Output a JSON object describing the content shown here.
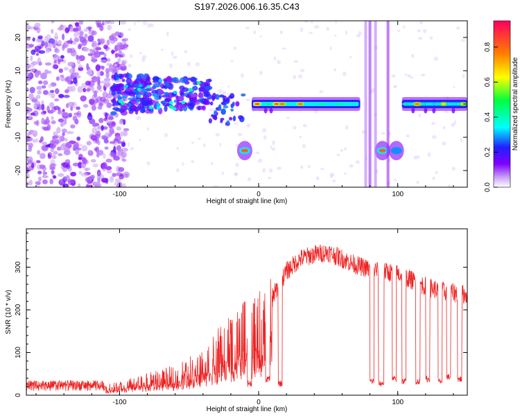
{
  "title": "S197.2026.006.16.35.C43",
  "chart_data": [
    {
      "type": "heatmap",
      "name": "spectrogram",
      "xlabel": "Height of straight line (km)",
      "ylabel": "Frequency (Hz)",
      "xlim": [
        -167,
        150
      ],
      "ylim": [
        -25,
        25
      ],
      "xticks": [
        -100,
        0,
        100
      ],
      "xtick_labels": [
        "-100",
        "0",
        "100"
      ],
      "yticks": [
        -20,
        -10,
        0,
        10,
        20
      ],
      "ytick_labels": [
        "-20",
        "-10",
        "0",
        "10",
        "20"
      ],
      "colorbar": {
        "label": "Normalized spectral amplitude",
        "range": [
          0.0,
          0.95
        ],
        "ticks": [
          0.0,
          0.2,
          0.4,
          0.6,
          0.8
        ],
        "tick_labels": [
          "0.0",
          "0.2",
          "0.4",
          "0.6",
          "0.8"
        ],
        "stops": [
          "#ffffff",
          "#b06ff0",
          "#8000ff",
          "#2020ff",
          "#00ffff",
          "#00ff40",
          "#ffff00",
          "#ff8000",
          "#ff0040"
        ]
      },
      "features": [
        {
          "kind": "noise",
          "x_range": [
            -167,
            -95
          ],
          "y_range": [
            -25,
            25
          ],
          "amplitude": 0.05
        },
        {
          "kind": "cluster",
          "x_range": [
            -105,
            -35
          ],
          "y_center": 3,
          "y_spread": 6,
          "amplitude": 0.3
        },
        {
          "kind": "band",
          "x_range": [
            -5,
            73
          ],
          "y_center": 0,
          "amplitude": 0.35,
          "peaks": [
            {
              "x": -1,
              "a": 0.85
            },
            {
              "x": 13,
              "a": 0.85
            },
            {
              "x": 17,
              "a": 0.8
            },
            {
              "x": 30,
              "a": 0.8
            }
          ]
        },
        {
          "kind": "band",
          "x_range": [
            103,
            150
          ],
          "y_center": 0,
          "amplitude": 0.3,
          "peaks": [
            {
              "x": 114,
              "a": 0.8
            },
            {
              "x": 133,
              "a": 0.7
            },
            {
              "x": 147,
              "a": 0.7
            }
          ]
        },
        {
          "kind": "blob",
          "x": -10,
          "y": -14,
          "amplitude": 0.85
        },
        {
          "kind": "blob",
          "x": 89,
          "y": -14,
          "amplitude": 0.85
        },
        {
          "kind": "blob",
          "x": 99,
          "y": -14,
          "amplitude": 0.3
        },
        {
          "kind": "vertical",
          "x_range": [
            75,
            95
          ],
          "amplitude": 0.1
        }
      ]
    },
    {
      "type": "line",
      "name": "snr",
      "xlabel": "Height of straight line (km)",
      "ylabel": "SNR (10 * v/v)",
      "xlim": [
        -167,
        150
      ],
      "ylim": [
        0,
        390
      ],
      "xticks": [
        -100,
        0,
        100
      ],
      "xtick_labels": [
        "-100",
        "0",
        "100"
      ],
      "yticks": [
        0,
        100,
        200,
        300
      ],
      "ytick_labels": [
        "0",
        "100",
        "200",
        "300"
      ],
      "color": "#ee2222",
      "envelope": {
        "x": [
          -167,
          -120,
          -100,
          -80,
          -60,
          -45,
          -30,
          -20,
          -10,
          0,
          10,
          20,
          30,
          40,
          50,
          60,
          70,
          80,
          90,
          100,
          110,
          120,
          130,
          140,
          150
        ],
        "values": [
          15,
          15,
          25,
          40,
          55,
          80,
          120,
          150,
          170,
          190,
          230,
          290,
          320,
          330,
          335,
          320,
          305,
          295,
          290,
          285,
          270,
          255,
          245,
          240,
          235
        ]
      },
      "dropouts": [
        {
          "x_range": [
            -8,
            -5
          ],
          "value": 20
        },
        {
          "x_range": [
            5,
            8
          ],
          "value": 30
        },
        {
          "x_range": [
            14,
            17
          ],
          "value": 20
        },
        {
          "x_range": [
            80,
            83
          ],
          "value": 25
        },
        {
          "x_range": [
            86,
            90
          ],
          "value": 20
        },
        {
          "x_range": [
            96,
            99
          ],
          "value": 30
        },
        {
          "x_range": [
            103,
            106
          ],
          "value": 25
        },
        {
          "x_range": [
            113,
            116
          ],
          "value": 25
        },
        {
          "x_range": [
            120,
            123
          ],
          "value": 30
        },
        {
          "x_range": [
            129,
            132
          ],
          "value": 25
        },
        {
          "x_range": [
            135,
            138
          ],
          "value": 35
        },
        {
          "x_range": [
            143,
            146
          ],
          "value": 30
        }
      ]
    }
  ]
}
